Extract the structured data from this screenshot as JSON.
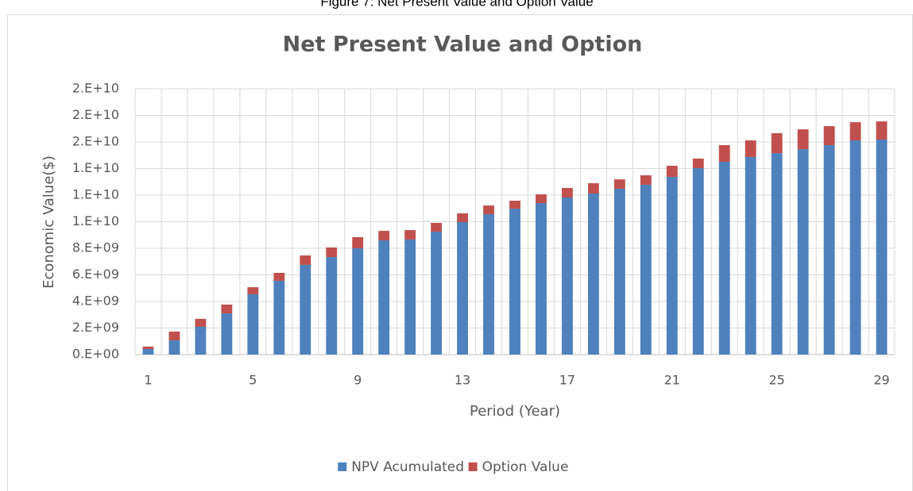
{
  "caption": "Figure 7: Net Present Value and Option Value",
  "chart_data": {
    "type": "stacked_bar",
    "title": "Net Present Value and Option",
    "x_label": "Period (Year)",
    "y_label": "Economic Value($)",
    "categories": [
      "1",
      null,
      null,
      null,
      "5",
      null,
      null,
      null,
      "9",
      null,
      null,
      null,
      "13",
      null,
      null,
      null,
      "17",
      null,
      null,
      null,
      "21",
      null,
      null,
      null,
      "25",
      null,
      null,
      null,
      "29"
    ],
    "series": [
      {
        "name": "NPV Acumulated",
        "color": "#4f81bd",
        "values": [
          420000000.0,
          1070000000.0,
          2090000000.0,
          3100000000.0,
          4540000000.0,
          5550000000.0,
          6750000000.0,
          7340000000.0,
          8000000000.0,
          8600000000.0,
          8660000000.0,
          9250000000.0,
          9970000000.0,
          10570000000.0,
          10980000000.0,
          11400000000.0,
          11820000000.0,
          12120000000.0,
          12480000000.0,
          12780000000.0,
          13370000000.0,
          14030000000.0,
          14510000000.0,
          14870000000.0,
          15160000000.0,
          15460000000.0,
          15760000000.0,
          16120000000.0,
          16180000000.0
        ]
      },
      {
        "name": "Option Value",
        "color": "#c0504d",
        "values": [
          180000000.0,
          660000000.0,
          600000000.0,
          660000000.0,
          530000000.0,
          600000000.0,
          710000000.0,
          720000000.0,
          840000000.0,
          710000000.0,
          710000000.0,
          660000000.0,
          660000000.0,
          650000000.0,
          600000000.0,
          660000000.0,
          720000000.0,
          780000000.0,
          710000000.0,
          710000000.0,
          840000000.0,
          720000000.0,
          1250000000.0,
          1250000000.0,
          1500000000.0,
          1490000000.0,
          1430000000.0,
          1370000000.0,
          1370000000.0
        ]
      }
    ],
    "ylim": [
      0,
      20000000000.0
    ],
    "yticks": [
      {
        "value": 0,
        "label": "0.E+00"
      },
      {
        "value": 2000000000.0,
        "label": "2.E+09"
      },
      {
        "value": 4000000000.0,
        "label": "4.E+09"
      },
      {
        "value": 6000000000.0,
        "label": "6.E+09"
      },
      {
        "value": 8000000000.0,
        "label": "8.E+09"
      },
      {
        "value": 10000000000.0,
        "label": "1.E+10"
      },
      {
        "value": 12000000000.0,
        "label": "1.E+10"
      },
      {
        "value": 14000000000.0,
        "label": "1.E+10"
      },
      {
        "value": 16000000000.0,
        "label": "2.E+10"
      },
      {
        "value": 18000000000.0,
        "label": "2.E+10"
      },
      {
        "value": 20000000000.0,
        "label": "2.E+10"
      }
    ],
    "grid": true,
    "legend": "bottom"
  }
}
